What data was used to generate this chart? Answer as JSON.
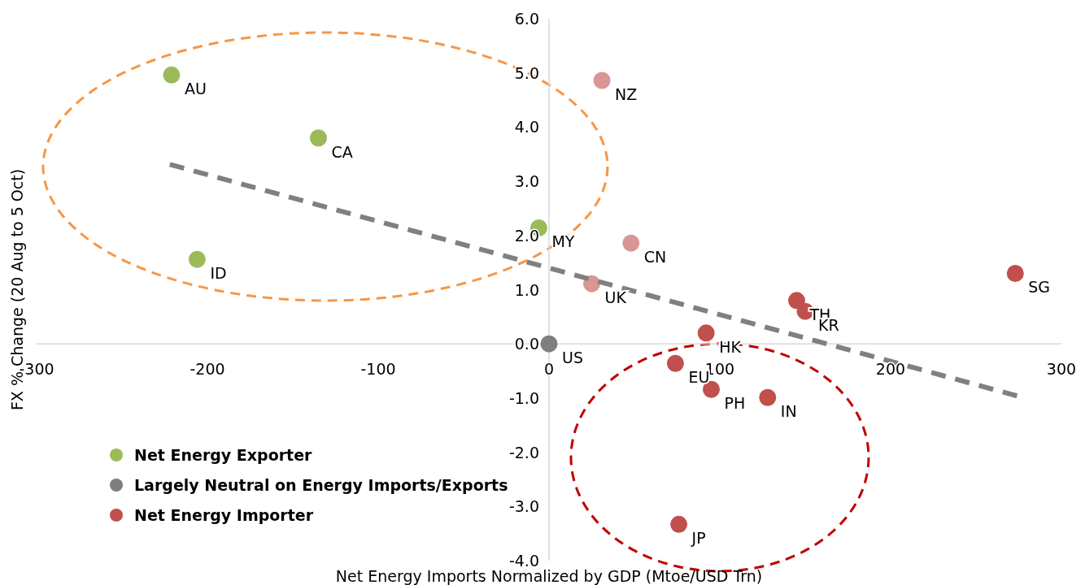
{
  "chart_data": {
    "type": "scatter",
    "xlabel": "Net Energy Imports Normalized by GDP (Mtoe/USD Trn)",
    "ylabel": "FX % Change (20 Aug to 5 Oct)",
    "xlim": [
      -300,
      300
    ],
    "xticks": [
      -300,
      -200,
      -100,
      0,
      100,
      200,
      300
    ],
    "ylim": [
      -4,
      6
    ],
    "yticks": [
      {
        "value": -4,
        "label": "-4.0"
      },
      {
        "value": -3,
        "label": "-3.0"
      },
      {
        "value": -2,
        "label": "-2.0"
      },
      {
        "value": -1,
        "label": "-1.0"
      },
      {
        "value": 0,
        "label": "0.0"
      },
      {
        "value": 1,
        "label": "1.0"
      },
      {
        "value": 2,
        "label": "2.0"
      },
      {
        "value": 3,
        "label": "3.0"
      },
      {
        "value": 4,
        "label": "4.0"
      },
      {
        "value": 5,
        "label": "5.0"
      },
      {
        "value": 6,
        "label": "6.0"
      }
    ],
    "grid": false,
    "legend": "bottom left",
    "marker": "circle",
    "series": [
      {
        "name": "Net Energy Exporter",
        "color": "#9bbb59",
        "x": [
          -221,
          -135,
          -206,
          -6
        ],
        "values": [
          4.96,
          3.8,
          1.56,
          2.14
        ]
      },
      {
        "name": "Largely Neutral on Energy Imports/Exports",
        "color": "#7f7f7f",
        "x": [
          0
        ],
        "values": [
          0
        ]
      },
      {
        "name": "Net Energy Importer",
        "color": "#c0504d",
        "x": [
          31,
          48,
          25,
          92,
          145,
          150,
          273,
          74,
          95,
          128,
          76
        ],
        "values": [
          4.86,
          1.86,
          1.11,
          0.2,
          0.8,
          0.6,
          1.3,
          -0.36,
          -0.84,
          -0.99,
          -3.33
        ],
        "colors": [
          "#d99694",
          "#d99694",
          "#d99694",
          "#c0504d",
          "#c0504d",
          "#c0504d",
          "#c0504d",
          "#c0504d",
          "#c0504d",
          "#c0504d",
          "#c0504d"
        ]
      },
      {
        "type": "line",
        "color": "#808080",
        "line_style": "dashed",
        "marker": "none",
        "x": [
          -222,
          274
        ],
        "values": [
          3.31,
          -0.96
        ]
      }
    ],
    "annotations": [
      {
        "text": "AU",
        "x": -221,
        "y": 4.96
      },
      {
        "text": "CA",
        "x": -135,
        "y": 3.8
      },
      {
        "text": "ID",
        "x": -206,
        "y": 1.56
      },
      {
        "text": "MY",
        "x": -6,
        "y": 2.14
      },
      {
        "text": "US",
        "x": 0,
        "y": 0
      },
      {
        "text": "NZ",
        "x": 31,
        "y": 4.86
      },
      {
        "text": "CN",
        "x": 48,
        "y": 1.86
      },
      {
        "text": "UK",
        "x": 25,
        "y": 1.11
      },
      {
        "text": "HK",
        "x": 92,
        "y": 0.2
      },
      {
        "text": "TH",
        "x": 145,
        "y": 0.8
      },
      {
        "text": "KR",
        "x": 150,
        "y": 0.6
      },
      {
        "text": "SG",
        "x": 273,
        "y": 1.3
      },
      {
        "text": "EU",
        "x": 74,
        "y": -0.36
      },
      {
        "text": "PH",
        "x": 95,
        "y": -0.84
      },
      {
        "text": "IN",
        "x": 128,
        "y": -0.99
      },
      {
        "text": "JP",
        "x": 76,
        "y": -3.33
      }
    ]
  }
}
